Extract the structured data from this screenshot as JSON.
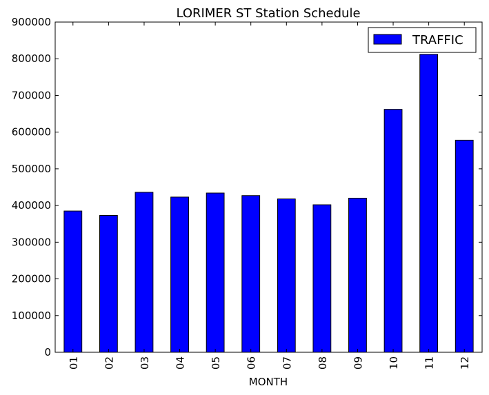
{
  "chart_data": {
    "type": "bar",
    "title": "LORIMER ST Station Schedule",
    "xlabel": "MONTH",
    "ylabel": "",
    "categories": [
      "01",
      "02",
      "03",
      "04",
      "05",
      "06",
      "07",
      "08",
      "09",
      "10",
      "11",
      "12"
    ],
    "series": [
      {
        "name": "TRAFFIC",
        "color": "#0000ff",
        "values": [
          385000,
          373000,
          436000,
          423000,
          434000,
          427000,
          418000,
          402000,
          420000,
          662000,
          812000,
          578000
        ]
      }
    ],
    "ylim": [
      0,
      900000
    ],
    "yticks": [
      "0",
      "100000",
      "200000",
      "300000",
      "400000",
      "500000",
      "600000",
      "700000",
      "800000",
      "900000"
    ],
    "legend": "top-right",
    "grid": false
  }
}
